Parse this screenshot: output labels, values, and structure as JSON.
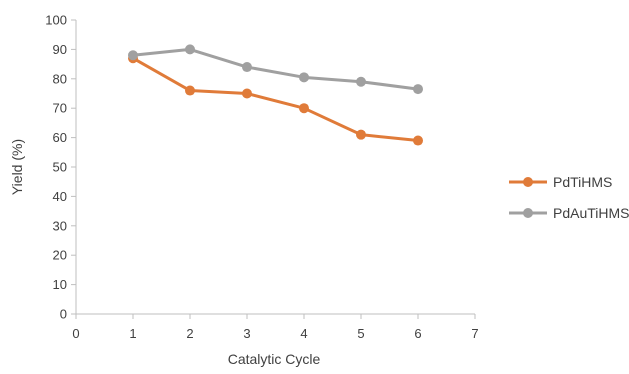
{
  "chart_data": {
    "type": "line",
    "title": "",
    "xlabel": "Catalytic Cycle",
    "ylabel": "Yield (%)",
    "xlim": [
      0,
      7
    ],
    "ylim": [
      0,
      100
    ],
    "x_ticks": [
      0,
      1,
      2,
      3,
      4,
      5,
      6,
      7
    ],
    "y_ticks": [
      0,
      10,
      20,
      30,
      40,
      50,
      60,
      70,
      80,
      90,
      100
    ],
    "grid": false,
    "legend_position": "right",
    "series": [
      {
        "name": "PdTiHMS",
        "color": "#E07B39",
        "x": [
          1,
          2,
          3,
          4,
          5,
          6
        ],
        "values": [
          87,
          76,
          75,
          70,
          61,
          59
        ]
      },
      {
        "name": "PdAuTiHMS",
        "color": "#A0A0A0",
        "x": [
          1,
          2,
          3,
          4,
          5,
          6
        ],
        "values": [
          88,
          90,
          84,
          80.5,
          79,
          76.5
        ]
      }
    ]
  }
}
